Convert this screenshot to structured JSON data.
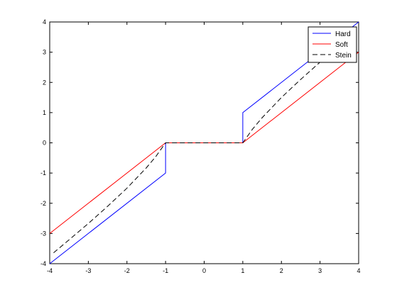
{
  "chart_data": {
    "type": "line",
    "title": "",
    "xlabel": "",
    "ylabel": "",
    "xlim": [
      -4,
      4
    ],
    "ylim": [
      -4,
      4
    ],
    "xticks": [
      -4,
      -3,
      -2,
      -1,
      0,
      1,
      2,
      3,
      4
    ],
    "yticks": [
      -4,
      -3,
      -2,
      -1,
      0,
      1,
      2,
      3,
      4
    ],
    "grid": false,
    "legend_position": "top-right",
    "series": [
      {
        "name": "Hard",
        "color": "#0000ff",
        "dash": "solid",
        "x": [
          -4,
          -1,
          -1,
          1,
          1,
          4
        ],
        "y": [
          -4,
          -1,
          0,
          0,
          1,
          4
        ]
      },
      {
        "name": "Soft",
        "color": "#ff0000",
        "dash": "solid",
        "x": [
          -4,
          -1,
          1,
          4
        ],
        "y": [
          -3,
          0,
          0,
          3
        ]
      },
      {
        "name": "Stein",
        "color": "#000000",
        "dash": "dashed",
        "x": [
          -3.9,
          -3.5,
          -3,
          -2.5,
          -2,
          -1.5,
          -1.25,
          -1,
          1,
          1.25,
          1.5,
          2,
          2.5,
          3,
          3.5,
          3.9
        ],
        "y": [
          -3.64,
          -3.21,
          -2.67,
          -2.1,
          -1.5,
          -0.83,
          -0.45,
          0,
          0,
          0.45,
          0.83,
          1.5,
          2.1,
          2.67,
          3.21,
          3.64
        ]
      }
    ]
  }
}
